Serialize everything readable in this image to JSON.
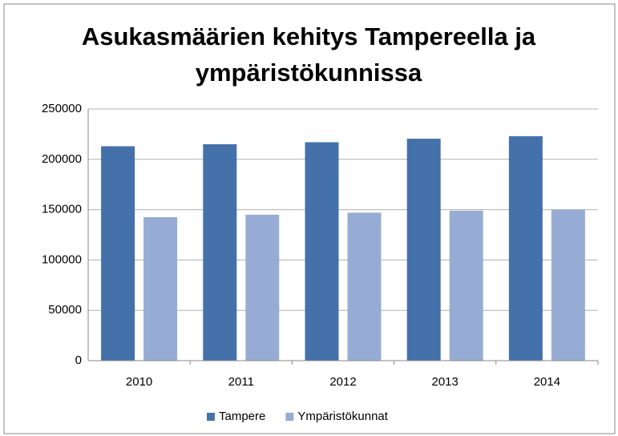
{
  "chart_data": {
    "type": "bar",
    "title": [
      "Asukasmäärien kehitys Tampereella ja",
      "ympäristökunnissa"
    ],
    "categories": [
      "2010",
      "2011",
      "2012",
      "2013",
      "2014"
    ],
    "series": [
      {
        "name": "Tampere",
        "color": "#4571aa",
        "values": [
          213000,
          215000,
          217000,
          220500,
          223000
        ]
      },
      {
        "name": "Ympäristökunnat",
        "color": "#96acd4",
        "values": [
          142500,
          145000,
          147000,
          149000,
          150000
        ]
      }
    ],
    "ylim": [
      0,
      250000
    ],
    "yticks": [
      0,
      50000,
      100000,
      150000,
      200000,
      250000
    ],
    "grid": true,
    "legend": "bottom"
  }
}
